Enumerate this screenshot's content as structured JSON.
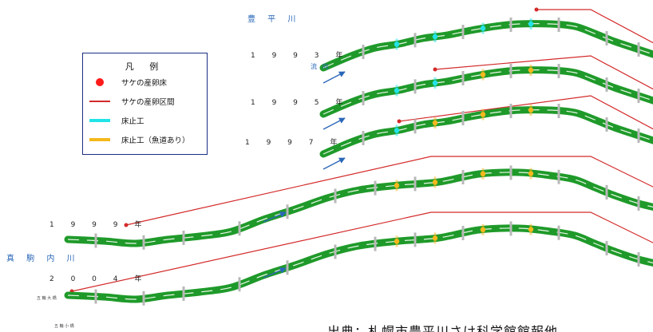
{
  "rivers": {
    "toyohira": "豊 平 川",
    "makomanai": "真 駒 内 川"
  },
  "years": [
    "1 9 9 3 年",
    "1 9 9 5 年",
    "1 9 9 7 年",
    "1 9 9 9 年",
    "2 0 0 4 年"
  ],
  "flow_direction": "流 向",
  "bridges": {
    "gorin_ohashi": "五 輪 大 橋",
    "gorin_kobashi": "五 輪 小 橋"
  },
  "legend": {
    "title": "凡 例",
    "items": [
      {
        "symbol": "red-dot",
        "label": "サケの産卵床",
        "color": "#ff1a1a"
      },
      {
        "symbol": "red-line",
        "label": "サケの産卵区間",
        "color": "#d32a2a"
      },
      {
        "symbol": "cyan-bar",
        "label": "床止工",
        "color": "#22e4e8"
      },
      {
        "symbol": "gold-bar",
        "label": "床止工（魚道あり）",
        "color": "#f5b81c"
      }
    ]
  },
  "source_note": "出典：札幌市豊平川さけ科学館館報他",
  "colors": {
    "river": "#1f9a2a",
    "river_dark": "#0f6e1a",
    "spawning_line": "#d32a2a",
    "weir": "#22e4e8",
    "weir_fishway": "#f5b81c",
    "arrow": "#2a67b8",
    "gray_bar": "#b8b8b8"
  }
}
